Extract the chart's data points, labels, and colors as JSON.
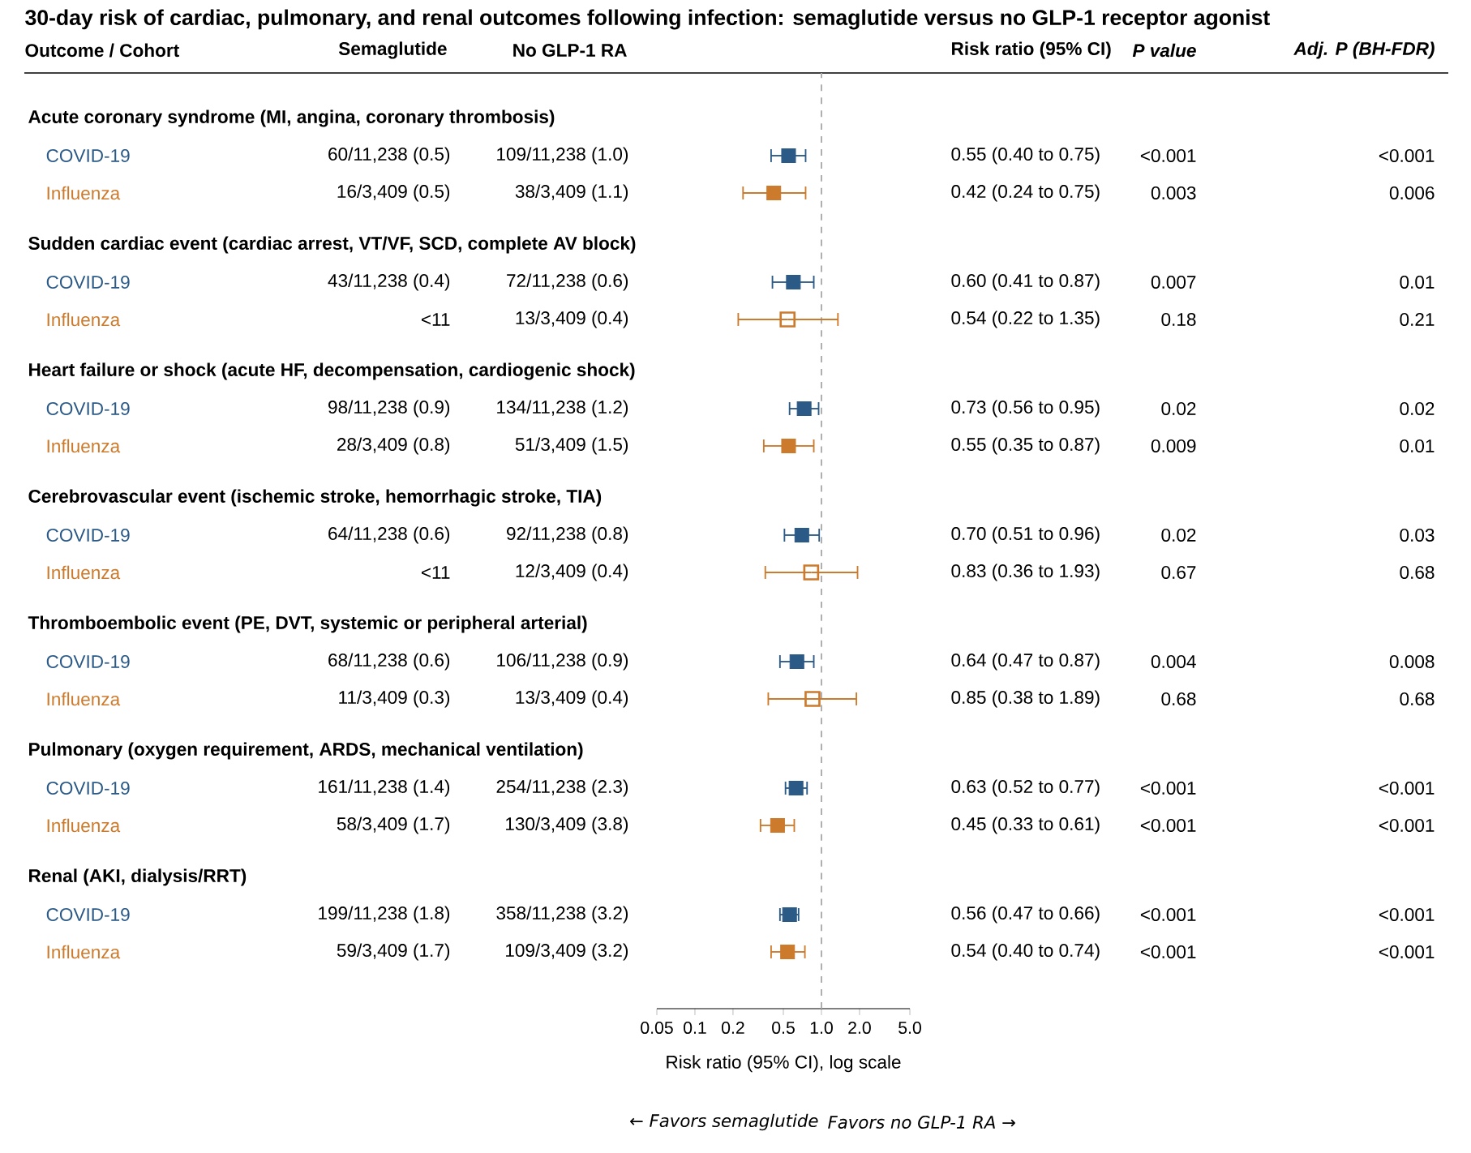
{
  "chart_data": {
    "type": "scatter",
    "orientation": "horizontal",
    "log": "x",
    "marker": "square",
    "title": "30-day risk of cardiac, pulmonary, and renal outcomes following infection: semaglutide versus no GLP-1 receptor agonist",
    "xlabel": "Risk ratio (95% CI), log scale",
    "categories": [
      "Acute coronary syndrome (MI, angina, coronary thrombosis)",
      "Sudden cardiac event (cardiac arrest, VT/VF, SCD, complete AV block)",
      "Heart failure or shock (acute HF, decompensation, cardiogenic shock)",
      "Cerebrovascular event (ischemic stroke, hemorrhagic stroke, TIA)",
      "Thromboembolic event (PE, DVT, systemic or peripheral arterial)",
      "Pulmonary (oxygen requirement, ARDS, mechanical ventilation)",
      "Renal (AKI, dialysis/RRT)"
    ],
    "series": [
      {
        "name": "COVID-19",
        "color": "#2b5a87",
        "values": [
          0.55,
          0.6,
          0.73,
          0.7,
          0.64,
          0.63,
          0.56
        ],
        "errors": [
          [
            0.4,
            0.75
          ],
          [
            0.41,
            0.87
          ],
          [
            0.56,
            0.95
          ],
          [
            0.51,
            0.96
          ],
          [
            0.47,
            0.87
          ],
          [
            0.52,
            0.77
          ],
          [
            0.47,
            0.66
          ]
        ]
      },
      {
        "name": "Influenza",
        "color": "#cc7a2c",
        "values": [
          0.42,
          0.54,
          0.55,
          0.83,
          0.85,
          0.45,
          0.54
        ],
        "errors": [
          [
            0.24,
            0.75
          ],
          [
            0.22,
            1.35
          ],
          [
            0.35,
            0.87
          ],
          [
            0.36,
            1.93
          ],
          [
            0.38,
            1.89
          ],
          [
            0.33,
            0.61
          ],
          [
            0.4,
            0.74
          ]
        ]
      }
    ],
    "xlim": [
      0.05,
      5
    ],
    "xticks": [
      0.05,
      0.1,
      0.2,
      0.5,
      {
        "value": 1,
        "label": "1.0"
      },
      {
        "value": 2,
        "label": "2.0"
      },
      {
        "value": 5,
        "label": "5.0"
      }
    ],
    "ref_lines": [
      {
        "axis": "x",
        "value": 1,
        "color": "#aaaaaa",
        "line_style": "dashed"
      }
    ],
    "annotations": [
      "Outcome / Cohort",
      "Semaglutide",
      "No GLP-1 RA",
      "Risk ratio (95% CI)",
      "P value",
      "Adj. P (BH-FDR)",
      "60/11,238 (0.5)",
      "109/11,238 (1.0)",
      "0.55 (0.40 to 0.75)",
      "<0.001",
      "<0.001",
      "16/3,409 (0.5)",
      "38/3,409 (1.1)",
      "0.42 (0.24 to 0.75)",
      "0.003",
      "0.006",
      "43/11,238 (0.4)",
      "72/11,238 (0.6)",
      "0.60 (0.41 to 0.87)",
      "0.007",
      "0.01",
      "<11",
      "13/3,409 (0.4)",
      "0.54 (0.22 to 1.35)",
      "0.18",
      "0.21",
      "98/11,238 (0.9)",
      "134/11,238 (1.2)",
      "0.73 (0.56 to 0.95)",
      "0.02",
      "0.02",
      "28/3,409 (0.8)",
      "51/3,409 (1.5)",
      "0.55 (0.35 to 0.87)",
      "0.009",
      "0.01",
      "64/11,238 (0.6)",
      "92/11,238 (0.8)",
      "0.70 (0.51 to 0.96)",
      "0.02",
      "0.03",
      "<11",
      "12/3,409 (0.4)",
      "0.83 (0.36 to 1.93)",
      "0.67",
      "0.68",
      "68/11,238 (0.6)",
      "106/11,238 (0.9)",
      "0.64 (0.47 to 0.87)",
      "0.004",
      "0.008",
      "11/3,409 (0.3)",
      "13/3,409 (0.4)",
      "0.85 (0.38 to 1.89)",
      "0.68",
      "0.68",
      "161/11,238 (1.4)",
      "254/11,238 (2.3)",
      "0.63 (0.52 to 0.77)",
      "<0.001",
      "<0.001",
      "58/3,409 (1.7)",
      "130/3,409 (3.8)",
      "0.45 (0.33 to 0.61)",
      "<0.001",
      "<0.001",
      "199/11,238 (1.8)",
      "358/11,238 (3.2)",
      "0.56 (0.47 to 0.66)",
      "<0.001",
      "<0.001",
      "59/3,409 (1.7)",
      "109/3,409 (3.2)",
      "0.54 (0.40 to 0.74)",
      "<0.001",
      "<0.001",
      "← Favors semaglutide",
      "Favors no GLP-1 RA →"
    ]
  }
}
